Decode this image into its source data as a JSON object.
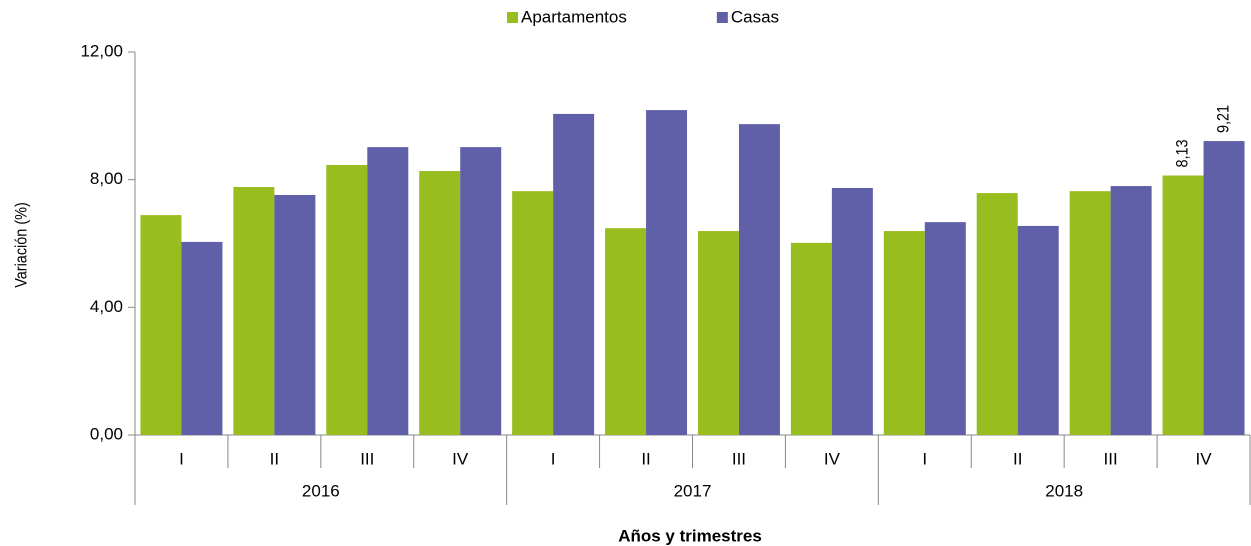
{
  "chart_data": {
    "type": "bar",
    "y_label": "Variación (%)",
    "x_label": "Años y trimestres",
    "categories": [
      "I",
      "II",
      "III",
      "IV",
      "I",
      "II",
      "III",
      "IV",
      "I",
      "II",
      "III",
      "IV"
    ],
    "groups": [
      "2016",
      "2017",
      "2018"
    ],
    "series": [
      {
        "name": "Apartamentos",
        "color": "#98bd1f",
        "values": [
          6.89,
          7.77,
          8.46,
          8.27,
          7.64,
          6.48,
          6.39,
          6.02,
          6.39,
          7.58,
          7.64,
          8.13
        ],
        "value_labels": [
          null,
          null,
          null,
          null,
          null,
          null,
          null,
          null,
          null,
          null,
          null,
          "8,13"
        ]
      },
      {
        "name": "Casas",
        "color": "#6060a8",
        "values": [
          6.05,
          7.52,
          9.02,
          9.02,
          10.06,
          10.18,
          9.74,
          7.74,
          6.67,
          6.55,
          7.8,
          9.21
        ],
        "value_labels": [
          null,
          null,
          null,
          null,
          null,
          null,
          null,
          null,
          null,
          null,
          null,
          "9,21"
        ]
      }
    ],
    "ylim": [
      0,
      12
    ],
    "yticks": [
      {
        "value": 0,
        "label": "0,00"
      },
      {
        "value": 4,
        "label": "4,00"
      },
      {
        "value": 8,
        "label": "8,00"
      },
      {
        "value": 12,
        "label": "12,00"
      }
    ],
    "grid": false,
    "legend": "top"
  }
}
